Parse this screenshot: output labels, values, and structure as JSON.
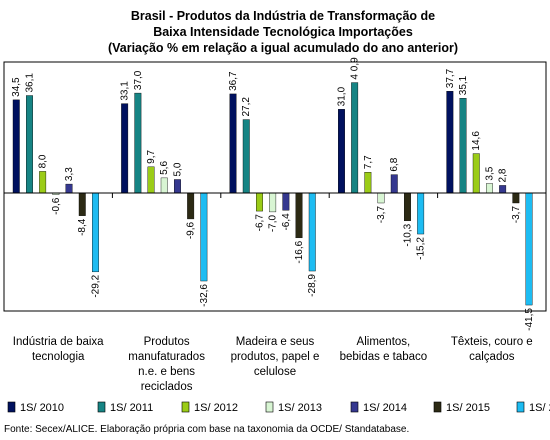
{
  "chart_data": {
    "type": "bar",
    "title": [
      "Brasil - Produtos da Indústria de Transformação de",
      "Baixa Intensidade Tecnológica  Importações",
      "(Variação % em relação a igual acumulado do ano anterior)"
    ],
    "categories": [
      [
        "Indústria de baixa",
        "tecnologia"
      ],
      [
        "Produtos",
        "manufaturados",
        "n.e. e bens",
        "reciclados"
      ],
      [
        "Madeira e seus",
        "produtos, papel e",
        "celulose"
      ],
      [
        "Alimentos,",
        "bebidas e tabaco"
      ],
      [
        "Têxteis, couro e",
        "calçados"
      ]
    ],
    "series": [
      {
        "name": "1S/ 2010",
        "color": "#00115f",
        "values": [
          34.5,
          33.1,
          36.7,
          31.0,
          37.7
        ],
        "labels": [
          "34,5",
          "33,1",
          "36,7",
          "31,0",
          "37,7"
        ]
      },
      {
        "name": "1S/ 2011",
        "color": "#168484",
        "values": [
          36.1,
          37.0,
          27.2,
          40.9,
          35.1
        ],
        "labels": [
          "36,1",
          "37,0",
          "27,2",
          "4 0,9",
          "35,1"
        ]
      },
      {
        "name": "1S/ 2012",
        "color": "#9bcc17",
        "values": [
          8.0,
          9.7,
          -6.7,
          7.7,
          14.6
        ],
        "labels": [
          "8,0",
          "9,7",
          "-6,7",
          "7,7",
          "14,6"
        ]
      },
      {
        "name": "1S/ 2013",
        "color": "#d8f5d3",
        "values": [
          -0.6,
          5.6,
          -7.0,
          -3.7,
          3.5
        ],
        "labels": [
          "-0,6",
          "5,6",
          "-7,0",
          "-3,7",
          "3,5"
        ]
      },
      {
        "name": "1S/ 2014",
        "color": "#35388f",
        "values": [
          3.3,
          5.0,
          -6.4,
          6.8,
          2.8
        ],
        "labels": [
          "3,3",
          "5,0",
          "-6,4",
          "6,8",
          "2,8"
        ]
      },
      {
        "name": "1S/ 2015",
        "color": "#2c2a14",
        "values": [
          -8.4,
          -9.6,
          -16.6,
          -10.3,
          -3.7
        ],
        "labels": [
          "-8,4",
          "-9,6",
          "-16,6",
          "-10,3",
          "-3,7"
        ]
      },
      {
        "name": "1S/ 2016",
        "color": "#1dbcf2",
        "values": [
          -29.2,
          -32.6,
          -28.9,
          -15.2,
          -41.5
        ],
        "labels": [
          "-29,2",
          "-32,6",
          "-28,9",
          "-15,2",
          "-41,5"
        ]
      }
    ],
    "ylim": [
      -45,
      45
    ],
    "grid": false,
    "legend_position": "bottom"
  },
  "source": "Fonte: Secex/ALICE. Elaboração própria com base na taxonomia da OCDE/ Standatabase."
}
